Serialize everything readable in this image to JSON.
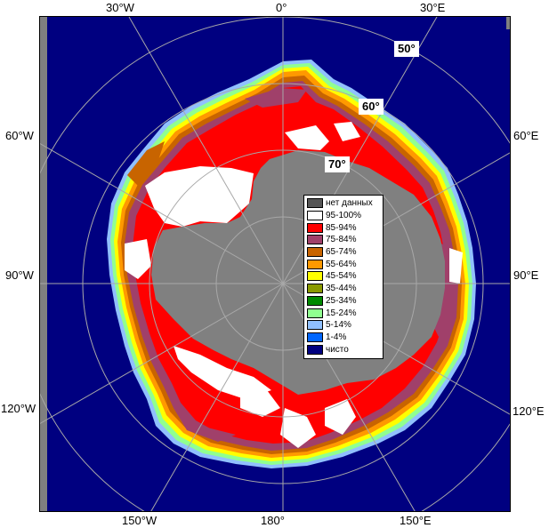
{
  "map": {
    "lon_labels": {
      "top_30w": "30°W",
      "top_0": "0°",
      "top_30e": "30°E",
      "left_60w": "60°W",
      "left_90w": "90°W",
      "left_120w": "120°W",
      "right_60e": "60°E",
      "right_90e": "90°E",
      "right_120e": "120°E",
      "bottom_150w": "150°W",
      "bottom_180": "180°",
      "bottom_150e": "150°E"
    },
    "lat_labels": {
      "lat_50": "50°",
      "lat_60": "60°",
      "lat_70": "70°"
    },
    "colors": {
      "ocean": "#000080",
      "no_data": "#808080",
      "c95_100": "#ffffff",
      "c85_94": "#ff0000",
      "c75_84": "#a0406a",
      "c65_74": "#c86400",
      "c55_64": "#ff9900",
      "c45_54": "#ffff00",
      "c35_44": "#8a9a00",
      "c25_34": "#008a00",
      "c15_24": "#90ff90",
      "c5_14": "#90c0ff",
      "c1_4": "#0066ff",
      "clear": "#000080"
    }
  },
  "legend": {
    "items": [
      {
        "label": "нет данных",
        "color": "#555555"
      },
      {
        "label": "95-100%",
        "color": "#ffffff"
      },
      {
        "label": "85-94%",
        "color": "#ff0000"
      },
      {
        "label": "75-84%",
        "color": "#a0406a"
      },
      {
        "label": "65-74%",
        "color": "#c86400"
      },
      {
        "label": "55-64%",
        "color": "#ff9900"
      },
      {
        "label": "45-54%",
        "color": "#ffff00"
      },
      {
        "label": "35-44%",
        "color": "#8a9a00"
      },
      {
        "label": "25-34%",
        "color": "#008a00"
      },
      {
        "label": "15-24%",
        "color": "#90ff90"
      },
      {
        "label": "5-14%",
        "color": "#90c0ff"
      },
      {
        "label": "1-4%",
        "color": "#0066ff"
      },
      {
        "label": "чисто",
        "color": "#000080"
      }
    ]
  }
}
